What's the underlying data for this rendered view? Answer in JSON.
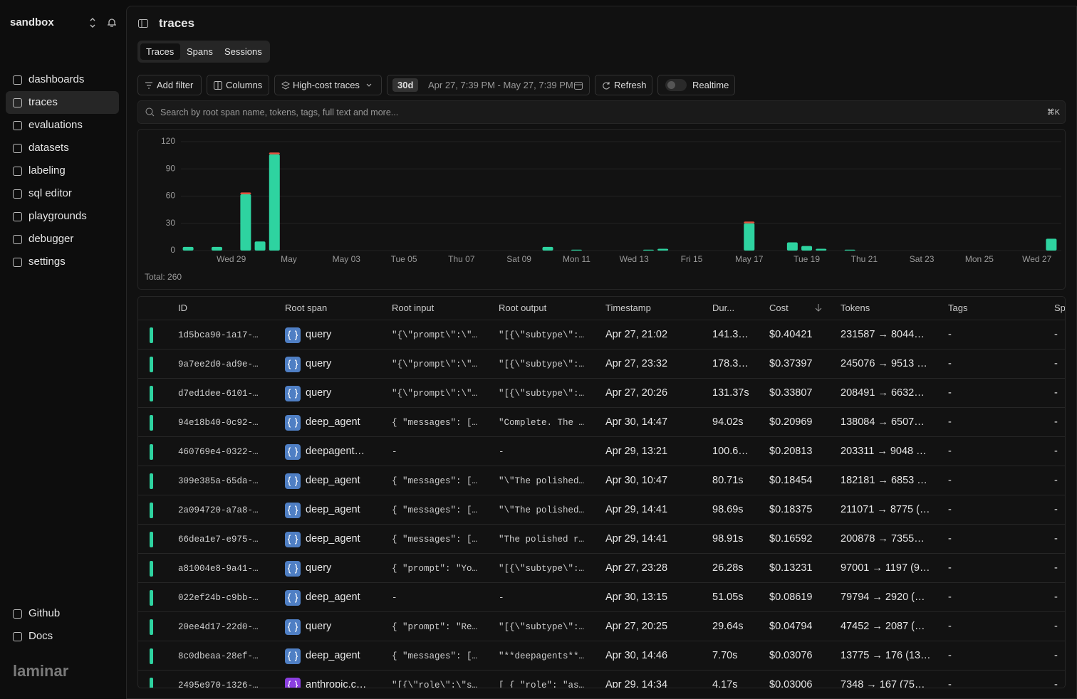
{
  "sidebar": {
    "workspace": "sandbox",
    "nav": [
      "dashboards",
      "traces",
      "evaluations",
      "datasets",
      "labeling",
      "sql editor",
      "playgrounds",
      "debugger",
      "settings"
    ],
    "footer": [
      "Github",
      "Docs"
    ],
    "logo": "laminar"
  },
  "header": {
    "title": "traces"
  },
  "tabs": [
    "Traces",
    "Spans",
    "Sessions"
  ],
  "toolbar": {
    "add_filter": "Add filter",
    "columns": "Columns",
    "preset": "High-cost traces",
    "range_badge": "30d",
    "range": "Apr 27, 7:39 PM - May 27, 7:39 PM",
    "refresh": "Refresh",
    "realtime": "Realtime"
  },
  "search": {
    "placeholder": "Search by root span name, tokens, tags, full text and more...",
    "shortcut": "⌘K"
  },
  "chart_data": {
    "type": "bar",
    "stacked": true,
    "grid": true,
    "total": "Total: 260",
    "categories": [
      null,
      null,
      null,
      "Wed 29",
      null,
      null,
      null,
      "May",
      null,
      null,
      null,
      "May 03",
      null,
      null,
      null,
      "Tue 05",
      null,
      null,
      null,
      "Thu 07",
      null,
      null,
      null,
      "Sat 09",
      null,
      null,
      null,
      "Mon 11",
      null,
      null,
      null,
      "Wed 13",
      null,
      null,
      null,
      "Fri 15",
      null,
      null,
      null,
      "May 17",
      null,
      null,
      null,
      "Tue 19",
      null,
      null,
      null,
      "Thu 21",
      null,
      null,
      null,
      "Sat 23",
      null,
      null,
      null,
      "Mon 25",
      null,
      null,
      null,
      "Wed 27",
      null
    ],
    "series": [
      {
        "color": "#2ed3a0",
        "values": [
          4,
          0,
          4,
          0,
          62,
          10,
          106,
          0,
          0,
          0,
          0,
          0,
          0,
          0,
          0,
          0,
          0,
          0,
          0,
          0,
          0,
          0,
          0,
          0,
          0,
          4,
          0,
          1,
          0,
          0,
          0,
          0,
          1,
          2,
          0,
          0,
          0,
          0,
          0,
          30,
          0,
          0,
          9,
          5,
          2,
          0,
          1,
          0,
          0,
          0,
          0,
          0,
          0,
          0,
          0,
          0,
          0,
          0,
          0,
          0,
          13
        ]
      },
      {
        "color": "#e0523f",
        "values": [
          0,
          0,
          0,
          0,
          2,
          0,
          2,
          0,
          0,
          0,
          0,
          0,
          0,
          0,
          0,
          0,
          0,
          0,
          0,
          0,
          0,
          0,
          0,
          0,
          0,
          0,
          0,
          0,
          0,
          0,
          0,
          0,
          0,
          0,
          0,
          0,
          0,
          0,
          0,
          2,
          0,
          0,
          0,
          0,
          0,
          0,
          0,
          0,
          0,
          0,
          0,
          0,
          0,
          0,
          0,
          0,
          0,
          0,
          0,
          0,
          0
        ]
      }
    ],
    "ylim": [
      0,
      120
    ],
    "yticks": [
      0,
      30,
      60,
      90,
      120
    ]
  },
  "table": {
    "columns": [
      "ID",
      "Root span",
      "Root input",
      "Root output",
      "Timestamp",
      "Dur...",
      "Cost",
      "Tokens",
      "Tags",
      "Sp"
    ],
    "span_icon_colors": [
      "#4f7fc4",
      "#4f7fc4",
      "#4f7fc4",
      "#4f7fc4",
      "#4f7fc4",
      "#4f7fc4",
      "#4f7fc4",
      "#4f7fc4",
      "#4f7fc4",
      "#4f7fc4",
      "#4f7fc4",
      "#4f7fc4",
      "#8b3fe0"
    ],
    "rows": [
      [
        "1d5bca90-1a17-…",
        "query",
        "\"{\\\"prompt\\\":\\\"…",
        "\"[{\\\"subtype\\\":…",
        "Apr 27, 21:02",
        "141.3…",
        "$0.40421",
        "231587 → 8044…",
        "-",
        "-"
      ],
      [
        "9a7ee2d0-ad9e-…",
        "query",
        "\"{\\\"prompt\\\":\\\"…",
        "\"[{\\\"subtype\\\":…",
        "Apr 27, 23:32",
        "178.3…",
        "$0.37397",
        "245076 → 9513 …",
        "-",
        "-"
      ],
      [
        "d7ed1dee-6101-…",
        "query",
        "\"{\\\"prompt\\\":\\\"…",
        "\"[{\\\"subtype\\\":…",
        "Apr 27, 20:26",
        "131.37s",
        "$0.33807",
        "208491 → 6632…",
        "-",
        "-"
      ],
      [
        "94e18b40-0c92-…",
        "deep_agent",
        "{ \"messages\": […",
        "\"Complete. The …",
        "Apr 30, 14:47",
        "94.02s",
        "$0.20969",
        "138084 → 6507…",
        "-",
        "-"
      ],
      [
        "460769e4-0322-…",
        "deepagent…",
        "-",
        "-",
        "Apr 29, 13:21",
        "100.6…",
        "$0.20813",
        "203311 → 9048 …",
        "-",
        "-"
      ],
      [
        "309e385a-65da-…",
        "deep_agent",
        "{ \"messages\": […",
        "\"\\\"The polished…",
        "Apr 30, 10:47",
        "80.71s",
        "$0.18454",
        "182181 → 6853 …",
        "-",
        "-"
      ],
      [
        "2a094720-a7a8-…",
        "deep_agent",
        "{ \"messages\": […",
        "\"\\\"The polished…",
        "Apr 29, 14:41",
        "98.69s",
        "$0.18375",
        "211071 → 8775 (…",
        "-",
        "-"
      ],
      [
        "66dea1e7-e975-…",
        "deep_agent",
        "{ \"messages\": […",
        "\"The polished r…",
        "Apr 29, 14:41",
        "98.91s",
        "$0.16592",
        "200878 → 7355…",
        "-",
        "-"
      ],
      [
        "a81004e8-9a41-…",
        "query",
        "{ \"prompt\": \"Yo…",
        "\"[{\\\"subtype\\\":…",
        "Apr 27, 23:28",
        "26.28s",
        "$0.13231",
        "97001 → 1197 (9…",
        "-",
        "-"
      ],
      [
        "022ef24b-c9bb-…",
        "deep_agent",
        "-",
        "-",
        "Apr 30, 13:15",
        "51.05s",
        "$0.08619",
        "79794 → 2920 (…",
        "-",
        "-"
      ],
      [
        "20ee4d17-22d0-…",
        "query",
        "{ \"prompt\": \"Re…",
        "\"[{\\\"subtype\\\":…",
        "Apr 27, 20:25",
        "29.64s",
        "$0.04794",
        "47452 → 2087 (…",
        "-",
        "-"
      ],
      [
        "8c0dbeaa-28ef-…",
        "deep_agent",
        "{ \"messages\": […",
        "\"**deepagents**…",
        "Apr 30, 14:46",
        "7.70s",
        "$0.03076",
        "13775 → 176 (13…",
        "-",
        "-"
      ],
      [
        "2495e970-1326-…",
        "anthropic.c…",
        "\"[{\\\"role\\\":\\\"s…",
        "[ { \"role\": \"as…",
        "Apr 29, 14:34",
        "4.17s",
        "$0.03006",
        "7348 → 167 (75…",
        "-",
        "-"
      ]
    ]
  }
}
